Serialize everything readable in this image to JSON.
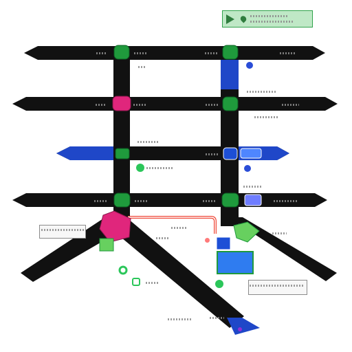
{
  "map": {
    "colors": {
      "road": "#111111",
      "road_highlight": "#1f47c8",
      "node_green": "#1f9a3c",
      "node_magenta": "#e0267c",
      "node_blue": "#1d4fd6",
      "route_red": "#ef4a3a",
      "legend_fill": "#bfe8c6",
      "legend_border": "#2fa24a",
      "note_fill": "#f7f7f7"
    },
    "icons": {
      "legend": [
        "direction-arrow-icon",
        "location-pin-icon"
      ],
      "nodes": [
        "transit-stop-icon",
        "bus-stop-icon",
        "train-icon",
        "parking-icon"
      ]
    }
  }
}
